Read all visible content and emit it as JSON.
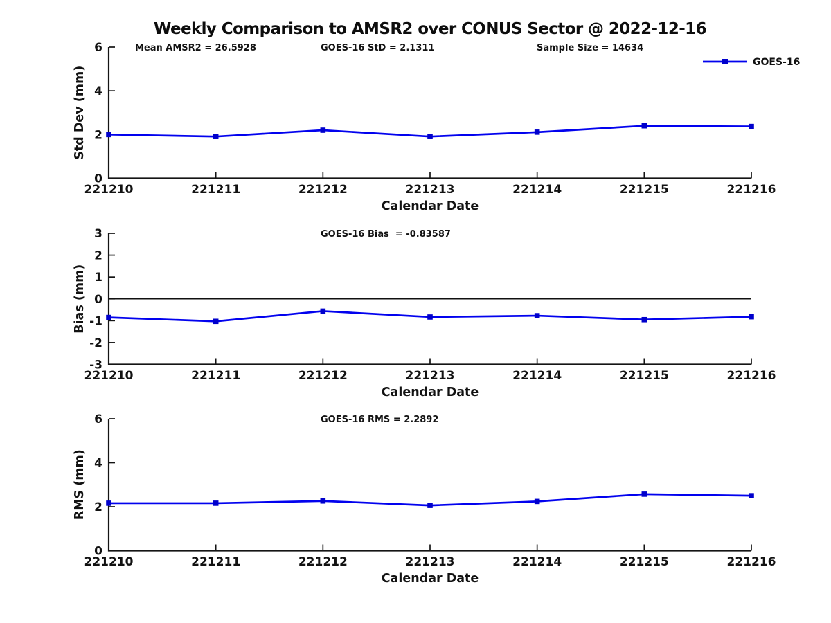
{
  "figure": {
    "title": "Weekly Comparison to AMSR2 over CONUS Sector @ 2022-12-16",
    "background_color": "#ffffff",
    "text_color": "#121212",
    "axis_color": "#141414",
    "line_color": "#0202ee",
    "marker_color": "#0000cc",
    "marker_shape": "square"
  },
  "legend": {
    "label": "GOES-16",
    "position": "top-right"
  },
  "chart_data": [
    {
      "type": "line",
      "name": "std-dev",
      "annotations": [
        "Mean AMSR2 = 26.5928",
        "GOES-16 StD = 2.1311",
        "Sample Size = 14634"
      ],
      "xlabel": "Calendar Date",
      "ylabel": "Std Dev (mm)",
      "categories": [
        "221210",
        "221211",
        "221212",
        "221213",
        "221214",
        "221215",
        "221216"
      ],
      "series": [
        {
          "name": "GOES-16",
          "values": [
            2.0,
            1.91,
            2.2,
            1.91,
            2.11,
            2.4,
            2.37
          ]
        }
      ],
      "ylim": [
        0,
        6
      ],
      "yticks": [
        0,
        2,
        4,
        6
      ],
      "grid": false,
      "zero_line": false,
      "show_legend": true
    },
    {
      "type": "line",
      "name": "bias",
      "annotations": [
        "GOES-16 Bias  = -0.83587"
      ],
      "xlabel": "Calendar Date",
      "ylabel": "Bias (mm)",
      "categories": [
        "221210",
        "221211",
        "221212",
        "221213",
        "221214",
        "221215",
        "221216"
      ],
      "series": [
        {
          "name": "GOES-16",
          "values": [
            -0.85,
            -1.03,
            -0.56,
            -0.83,
            -0.77,
            -0.95,
            -0.82
          ]
        }
      ],
      "ylim": [
        -3,
        3
      ],
      "yticks": [
        -3,
        -2,
        -1,
        0,
        1,
        2,
        3
      ],
      "grid": false,
      "zero_line": true,
      "show_legend": false
    },
    {
      "type": "line",
      "name": "rms",
      "annotations": [
        "GOES-16 RMS = 2.2892"
      ],
      "xlabel": "Calendar Date",
      "ylabel": "RMS (mm)",
      "categories": [
        "221210",
        "221211",
        "221212",
        "221213",
        "221214",
        "221215",
        "221216"
      ],
      "series": [
        {
          "name": "GOES-16",
          "values": [
            2.16,
            2.16,
            2.26,
            2.06,
            2.24,
            2.57,
            2.5
          ]
        }
      ],
      "ylim": [
        0,
        6
      ],
      "yticks": [
        0,
        2,
        4,
        6
      ],
      "grid": false,
      "zero_line": false,
      "show_legend": false
    }
  ]
}
